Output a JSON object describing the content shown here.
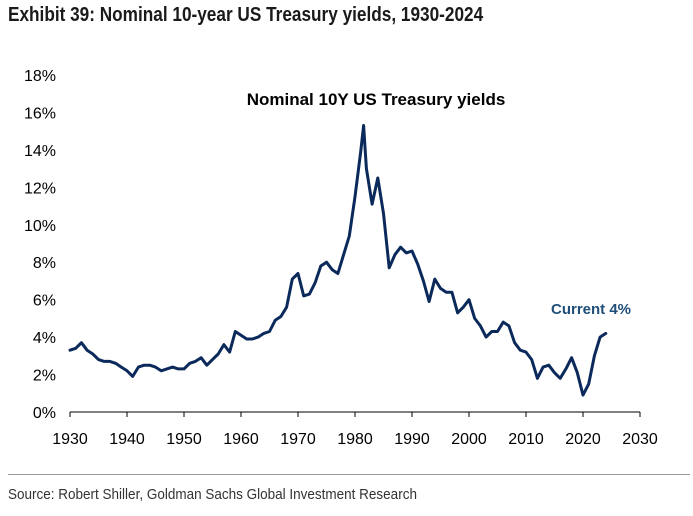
{
  "exhibit_title": "Exhibit 39: Nominal 10-year US Treasury yields, 1930-2024",
  "source": "Source: Robert Shiller, Goldman Sachs Global Investment Research",
  "colors": {
    "line": "#0b2a5b",
    "annotation": "#1f4e79",
    "axis": "#000000"
  },
  "chart_data": {
    "type": "line",
    "title": "Nominal 10Y US Treasury yields",
    "xlabel": "",
    "ylabel": "",
    "xlim": [
      1930,
      2030
    ],
    "ylim": [
      0,
      18
    ],
    "x_ticks": [
      "1930",
      "1940",
      "1950",
      "1960",
      "1970",
      "1980",
      "1990",
      "2000",
      "2010",
      "2020",
      "2030"
    ],
    "y_ticks": [
      "0%",
      "2%",
      "4%",
      "6%",
      "8%",
      "10%",
      "12%",
      "14%",
      "16%",
      "18%"
    ],
    "grid": false,
    "legend": "none",
    "annotation": {
      "text": "Current 4%",
      "x": 2024,
      "y": 4.0
    },
    "series": [
      {
        "x": [
          1930,
          1931,
          1932,
          1933,
          1934,
          1935,
          1936,
          1937,
          1938,
          1939,
          1940,
          1941,
          1942,
          1943,
          1944,
          1945,
          1946,
          1947,
          1948,
          1949,
          1950,
          1951,
          1952,
          1953,
          1954,
          1955,
          1956,
          1957,
          1958,
          1959,
          1960,
          1961,
          1962,
          1963,
          1964,
          1965,
          1966,
          1967,
          1968,
          1969,
          1970,
          1971,
          1972,
          1973,
          1974,
          1975,
          1976,
          1977,
          1978,
          1979,
          1980,
          1981,
          1981.5,
          1982,
          1983,
          1984,
          1985,
          1986,
          1987,
          1988,
          1989,
          1990,
          1991,
          1992,
          1993,
          1994,
          1995,
          1996,
          1997,
          1998,
          1999,
          2000,
          2001,
          2002,
          2003,
          2004,
          2005,
          2006,
          2007,
          2008,
          2009,
          2010,
          2011,
          2012,
          2013,
          2014,
          2015,
          2016,
          2017,
          2018,
          2019,
          2020,
          2021,
          2022,
          2023,
          2024
        ],
        "y": [
          3.3,
          3.4,
          3.7,
          3.3,
          3.1,
          2.8,
          2.7,
          2.7,
          2.6,
          2.4,
          2.2,
          1.9,
          2.4,
          2.5,
          2.5,
          2.4,
          2.2,
          2.3,
          2.4,
          2.3,
          2.3,
          2.6,
          2.7,
          2.9,
          2.5,
          2.8,
          3.1,
          3.6,
          3.2,
          4.3,
          4.1,
          3.9,
          3.9,
          4.0,
          4.2,
          4.3,
          4.9,
          5.1,
          5.6,
          7.1,
          7.4,
          6.2,
          6.3,
          6.9,
          7.8,
          8.0,
          7.6,
          7.4,
          8.4,
          9.4,
          11.5,
          13.9,
          15.3,
          13.0,
          11.1,
          12.5,
          10.6,
          7.7,
          8.4,
          8.8,
          8.5,
          8.6,
          7.9,
          7.0,
          5.9,
          7.1,
          6.6,
          6.4,
          6.4,
          5.3,
          5.6,
          6.0,
          5.0,
          4.6,
          4.0,
          4.3,
          4.3,
          4.8,
          4.6,
          3.7,
          3.3,
          3.2,
          2.8,
          1.8,
          2.4,
          2.5,
          2.1,
          1.8,
          2.3,
          2.9,
          2.1,
          0.9,
          1.5,
          3.0,
          4.0,
          4.2
        ]
      }
    ]
  }
}
